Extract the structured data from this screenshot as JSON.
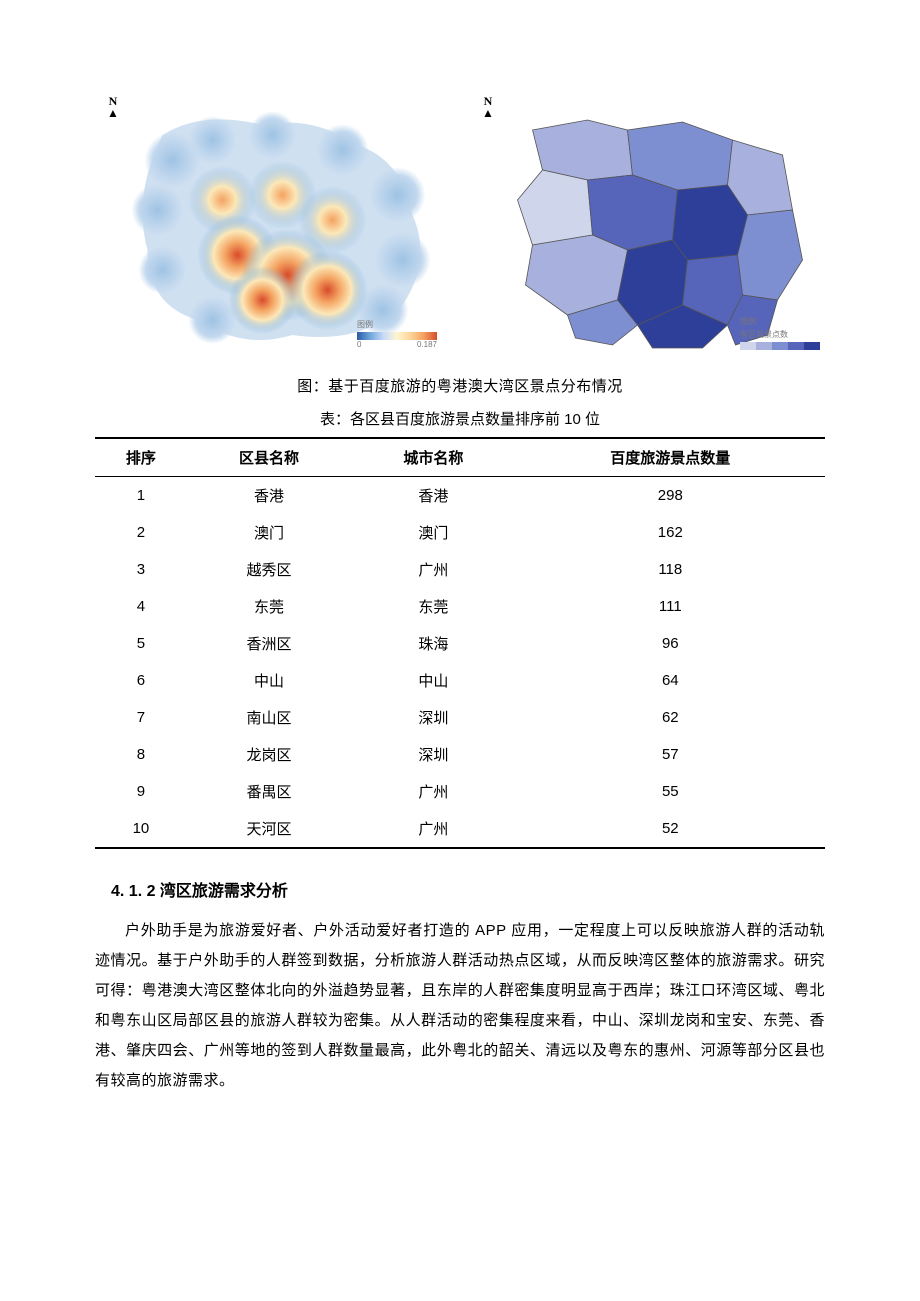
{
  "maps": {
    "north_label": "N",
    "heatmap": {
      "legend_title": "图例",
      "legend_min_label": "0",
      "legend_max_label": "0.187",
      "gradient_stops": [
        "#2b5aa5",
        "#6fa8dc",
        "#c9daf8",
        "#fff5d1",
        "#fcd59a",
        "#f4a261",
        "#d84b2a"
      ],
      "background_color": "#ffffff"
    },
    "choropleth": {
      "legend_title": "图例",
      "legend_label": "各区县景点数",
      "color_scale": [
        "#cfd6ec",
        "#a8b1dd",
        "#7e8fd1",
        "#5664ba",
        "#2e3f99"
      ],
      "border_color": "#555",
      "background_color": "#ffffff"
    }
  },
  "figure_caption": "图：基于百度旅游的粤港澳大湾区景点分布情况",
  "table": {
    "caption": "表：各区县百度旅游景点数量排序前 10 位",
    "columns": [
      "排序",
      "区县名称",
      "城市名称",
      "百度旅游景点数量"
    ],
    "rows": [
      [
        "1",
        "香港",
        "香港",
        "298"
      ],
      [
        "2",
        "澳门",
        "澳门",
        "162"
      ],
      [
        "3",
        "越秀区",
        "广州",
        "118"
      ],
      [
        "4",
        "东莞",
        "东莞",
        "111"
      ],
      [
        "5",
        "香洲区",
        "珠海",
        "96"
      ],
      [
        "6",
        "中山",
        "中山",
        "64"
      ],
      [
        "7",
        "南山区",
        "深圳",
        "62"
      ],
      [
        "8",
        "龙岗区",
        "深圳",
        "57"
      ],
      [
        "9",
        "番禺区",
        "广州",
        "55"
      ],
      [
        "10",
        "天河区",
        "广州",
        "52"
      ]
    ]
  },
  "section": {
    "heading": "4. 1. 2 湾区旅游需求分析",
    "body": "户外助手是为旅游爱好者、户外活动爱好者打造的 APP 应用，一定程度上可以反映旅游人群的活动轨迹情况。基于户外助手的人群签到数据，分析旅游人群活动热点区域，从而反映湾区整体的旅游需求。研究可得：粤港澳大湾区整体北向的外溢趋势显著，且东岸的人群密集度明显高于西岸；珠江口环湾区域、粤北和粤东山区局部区县的旅游人群较为密集。从人群活动的密集程度来看，中山、深圳龙岗和宝安、东莞、香港、肇庆四会、广州等地的签到人群数量最高，此外粤北的韶关、清远以及粤东的惠州、河源等部分区县也有较高的旅游需求。"
  }
}
